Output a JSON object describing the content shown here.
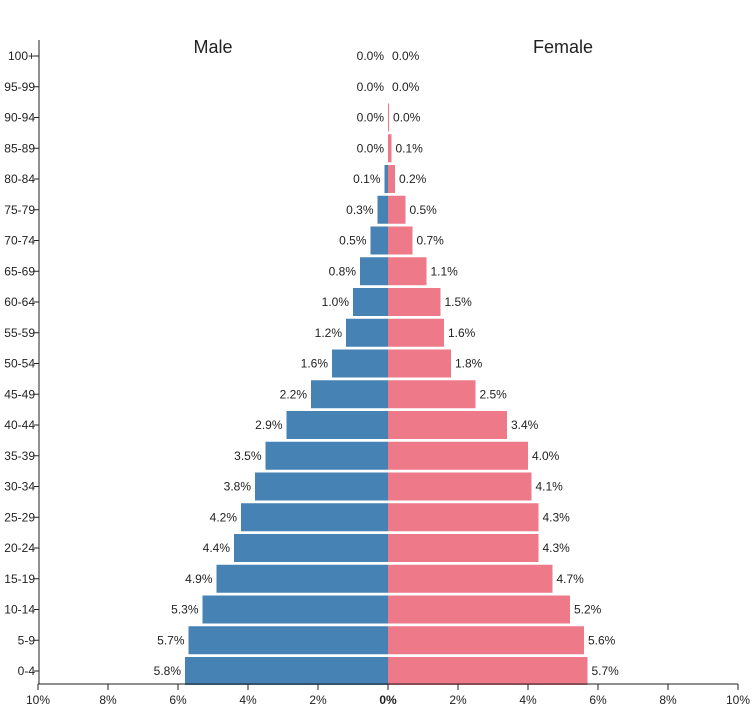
{
  "chart_data": {
    "type": "bar",
    "orientation": "horizontal",
    "categories": [
      "100+",
      "95-99",
      "90-94",
      "85-89",
      "80-84",
      "75-79",
      "70-74",
      "65-69",
      "60-64",
      "55-59",
      "50-54",
      "45-49",
      "40-44",
      "35-39",
      "30-34",
      "25-29",
      "20-24",
      "15-19",
      "10-14",
      "5-9",
      "0-4"
    ],
    "series": [
      {
        "name": "Male",
        "color": "#4682b4",
        "values": [
          0.0,
          0.0,
          0.0,
          0.0,
          0.1,
          0.3,
          0.5,
          0.8,
          1.0,
          1.2,
          1.6,
          2.2,
          2.9,
          3.5,
          3.8,
          4.2,
          4.4,
          4.9,
          5.3,
          5.7,
          5.8
        ],
        "labels": [
          "0.0%",
          "0.0%",
          "0.0%",
          "0.0%",
          "0.1%",
          "0.3%",
          "0.5%",
          "0.8%",
          "1.0%",
          "1.2%",
          "1.6%",
          "2.2%",
          "2.9%",
          "3.5%",
          "3.8%",
          "4.2%",
          "4.4%",
          "4.9%",
          "5.3%",
          "5.7%",
          "5.8%"
        ]
      },
      {
        "name": "Female",
        "color": "#ee7989",
        "values": [
          0.0,
          0.0,
          0.03,
          0.1,
          0.2,
          0.5,
          0.7,
          1.1,
          1.5,
          1.6,
          1.8,
          2.5,
          3.4,
          4.0,
          4.1,
          4.3,
          4.3,
          4.7,
          5.2,
          5.6,
          5.7
        ],
        "labels": [
          "0.0%",
          "0.0%",
          "0.0%",
          "0.1%",
          "0.2%",
          "0.5%",
          "0.7%",
          "1.1%",
          "1.5%",
          "1.6%",
          "1.8%",
          "2.5%",
          "3.4%",
          "4.0%",
          "4.1%",
          "4.3%",
          "4.3%",
          "4.7%",
          "5.2%",
          "5.6%",
          "5.7%"
        ]
      }
    ],
    "xlim": [
      -10,
      10
    ],
    "xticks": [
      -10,
      -8,
      -6,
      -4,
      -2,
      0,
      2,
      4,
      6,
      8,
      10
    ],
    "xtick_labels": [
      "10%",
      "8%",
      "6%",
      "4%",
      "2%",
      "0%",
      "2%",
      "4%",
      "6%",
      "8%",
      "10%"
    ],
    "grid": false,
    "legend": "none"
  }
}
